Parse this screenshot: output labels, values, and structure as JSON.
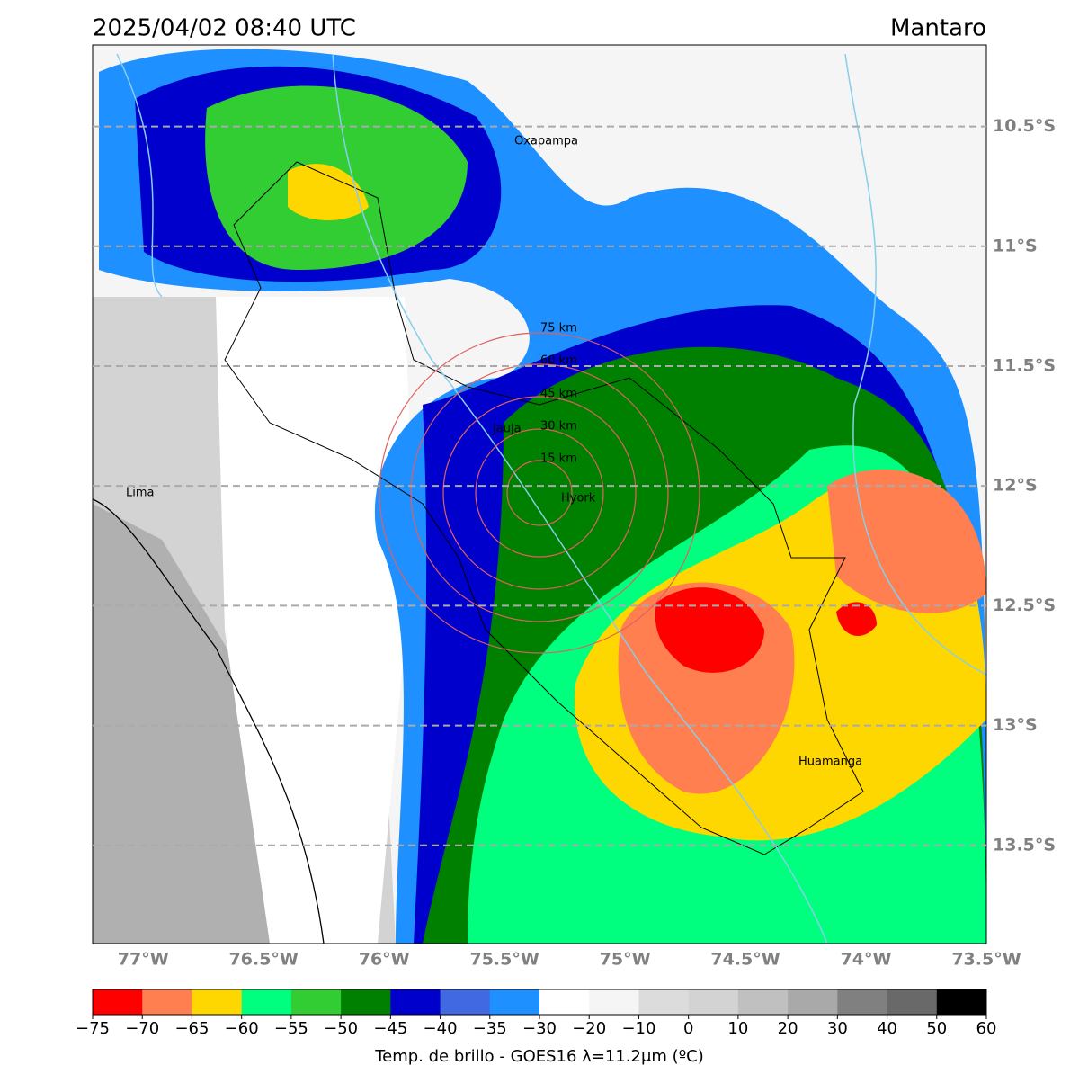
{
  "header": {
    "title": "2025/04/02 08:40 UTC",
    "region": "Mantaro"
  },
  "map": {
    "xlim": [
      -77.21,
      -73.5
    ],
    "ylim": [
      -13.91,
      -10.16
    ],
    "xticks": [
      {
        "value": -77,
        "label": "77°W"
      },
      {
        "value": -76.5,
        "label": "76.5°W"
      },
      {
        "value": -76,
        "label": "76°W"
      },
      {
        "value": -75.5,
        "label": "75.5°W"
      },
      {
        "value": -75,
        "label": "75°W"
      },
      {
        "value": -74.5,
        "label": "74.5°W"
      },
      {
        "value": -74,
        "label": "74°W"
      },
      {
        "value": -73.5,
        "label": "73.5°W"
      }
    ],
    "yticks": [
      {
        "value": -10.5,
        "label": "10.5°S"
      },
      {
        "value": -11,
        "label": "11°S"
      },
      {
        "value": -11.5,
        "label": "11.5°S"
      },
      {
        "value": -12,
        "label": "12°S"
      },
      {
        "value": -12.5,
        "label": "12.5°S"
      },
      {
        "value": -13,
        "label": "13°S"
      },
      {
        "value": -13.5,
        "label": "13.5°S"
      }
    ],
    "places": [
      "Oxapampa",
      "Jauja",
      "Lima",
      "Hyork",
      "Huamanga"
    ],
    "rings": [
      "15 km",
      "30 km",
      "45 km",
      "60 km",
      "75 km"
    ]
  },
  "colorbar": {
    "label": "Temp. de brillo - GOES16 λ=11.2μm (ºC)",
    "ticks": [
      {
        "value": -75,
        "label": "−75"
      },
      {
        "value": -70,
        "label": "−70"
      },
      {
        "value": -65,
        "label": "−65"
      },
      {
        "value": -60,
        "label": "−60"
      },
      {
        "value": -55,
        "label": "−55"
      },
      {
        "value": -50,
        "label": "−50"
      },
      {
        "value": -45,
        "label": "−45"
      },
      {
        "value": -40,
        "label": "−40"
      },
      {
        "value": -35,
        "label": "−35"
      },
      {
        "value": -30,
        "label": "−30"
      },
      {
        "value": -20,
        "label": "−20"
      },
      {
        "value": -10,
        "label": "−10"
      },
      0,
      10,
      20,
      30,
      40,
      50,
      60
    ],
    "colors": [
      "#ff0000",
      "#ff7f50",
      "#ffd700",
      "#00ff7f",
      "#32cd32",
      "#008000",
      "#0000cd",
      "#4169e1",
      "#1e90ff",
      "#ffffff",
      "#f5f5f5",
      "#dcdcdc",
      "#d3d3d3",
      "#c0c0c0",
      "#a9a9a9",
      "#808080",
      "#696969",
      "#000000"
    ]
  }
}
